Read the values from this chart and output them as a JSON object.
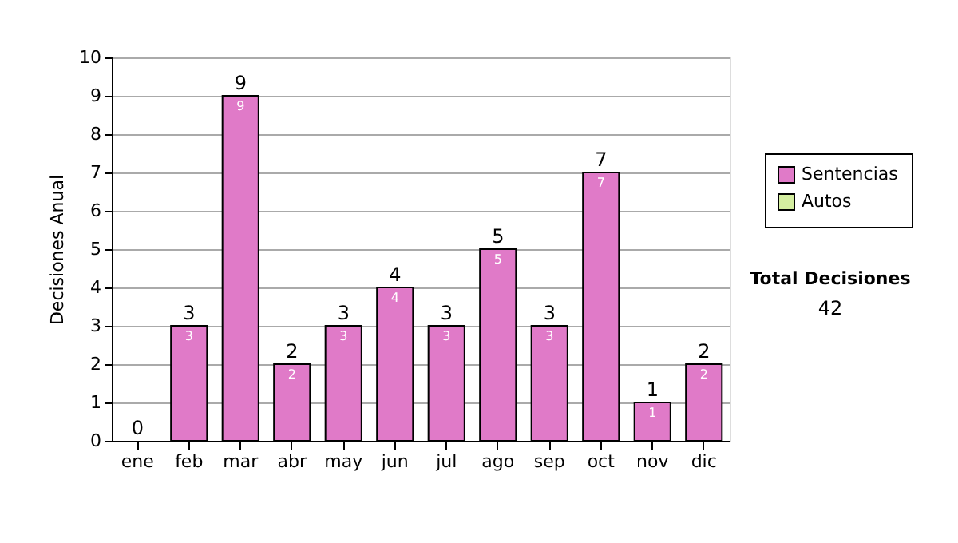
{
  "chart_data": {
    "type": "bar",
    "stacked": true,
    "ylabel": "Decisiones Anual",
    "categories": [
      "ene",
      "feb",
      "mar",
      "abr",
      "may",
      "jun",
      "jul",
      "ago",
      "sep",
      "oct",
      "nov",
      "dic"
    ],
    "series": [
      {
        "name": "Sentencias",
        "color": "#e07ac8",
        "values": [
          0,
          3,
          9,
          2,
          3,
          4,
          3,
          5,
          3,
          7,
          1,
          2
        ],
        "value_labels": [
          null,
          "3",
          "9",
          "2",
          "3",
          "4",
          "3",
          "5",
          "3",
          "7",
          "1",
          "2"
        ]
      },
      {
        "name": "Autos",
        "color": "#d4eea0",
        "values": [
          0,
          0,
          0,
          0,
          0,
          0,
          0,
          0,
          0,
          0,
          0,
          0
        ]
      }
    ],
    "totals": [
      "0",
      "3",
      "9",
      "2",
      "3",
      "4",
      "3",
      "5",
      "3",
      "7",
      "1",
      "2"
    ],
    "ylim": [
      0,
      10
    ],
    "yticks": [
      0,
      1,
      2,
      3,
      4,
      5,
      6,
      7,
      8,
      9,
      10
    ],
    "grid": "y",
    "legend": "right",
    "annotations": [
      "Total Decisiones",
      "42"
    ]
  }
}
